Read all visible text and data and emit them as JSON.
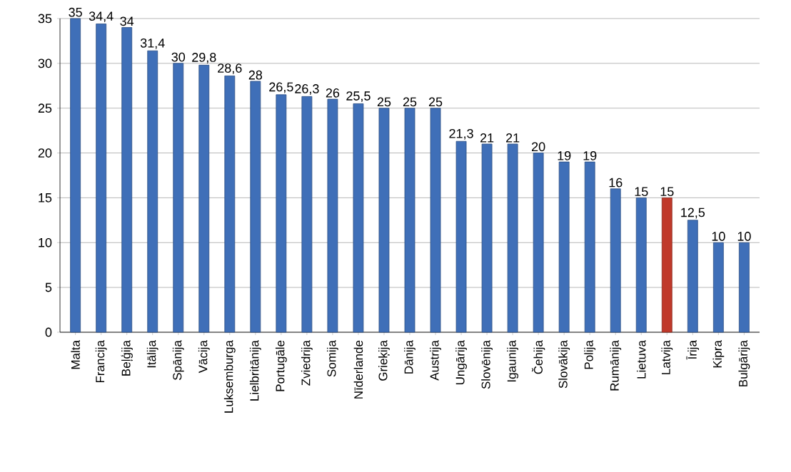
{
  "chart_data": {
    "type": "bar",
    "categories": [
      "Malta",
      "Francija",
      "Beļģija",
      "Itālija",
      "Spānija",
      "Vācija",
      "Luksemburga",
      "Lielbritānija",
      "Portugāle",
      "Zviedrija",
      "Somija",
      "Nīderlande",
      "Grieķija",
      "Dānija",
      "Austrija",
      "Ungārija",
      "Slovēnija",
      "Igaunija",
      "Čehija",
      "Slovākija",
      "Polija",
      "Rumānija",
      "Lietuva",
      "Latvija",
      "Īrija",
      "Kipra",
      "Bulgārija"
    ],
    "values": [
      35,
      34.4,
      34,
      31.4,
      30,
      29.8,
      28.6,
      28,
      26.5,
      26.3,
      26,
      25.5,
      25,
      25,
      25,
      21.3,
      21,
      21,
      20,
      19,
      19,
      16,
      15,
      15,
      12.5,
      10,
      10
    ],
    "value_labels": [
      "35",
      "34,4",
      "34",
      "31,4",
      "30",
      "29,8",
      "28,6",
      "28",
      "26,5",
      "26,3",
      "26",
      "25,5",
      "25",
      "25",
      "25",
      "21,3",
      "21",
      "21",
      "20",
      "19",
      "19",
      "16",
      "15",
      "15",
      "12,5",
      "10",
      "10"
    ],
    "colors": [
      "#3f6fb8",
      "#3f6fb8",
      "#3f6fb8",
      "#3f6fb8",
      "#3f6fb8",
      "#3f6fb8",
      "#3f6fb8",
      "#3f6fb8",
      "#3f6fb8",
      "#3f6fb8",
      "#3f6fb8",
      "#3f6fb8",
      "#3f6fb8",
      "#3f6fb8",
      "#3f6fb8",
      "#3f6fb8",
      "#3f6fb8",
      "#3f6fb8",
      "#3f6fb8",
      "#3f6fb8",
      "#3f6fb8",
      "#3f6fb8",
      "#3f6fb8",
      "#c0392b",
      "#3f6fb8",
      "#3f6fb8",
      "#3f6fb8"
    ],
    "ylim": [
      0,
      35
    ],
    "yticks": [
      0,
      5,
      10,
      15,
      20,
      25,
      30,
      35
    ],
    "grid": "y"
  }
}
